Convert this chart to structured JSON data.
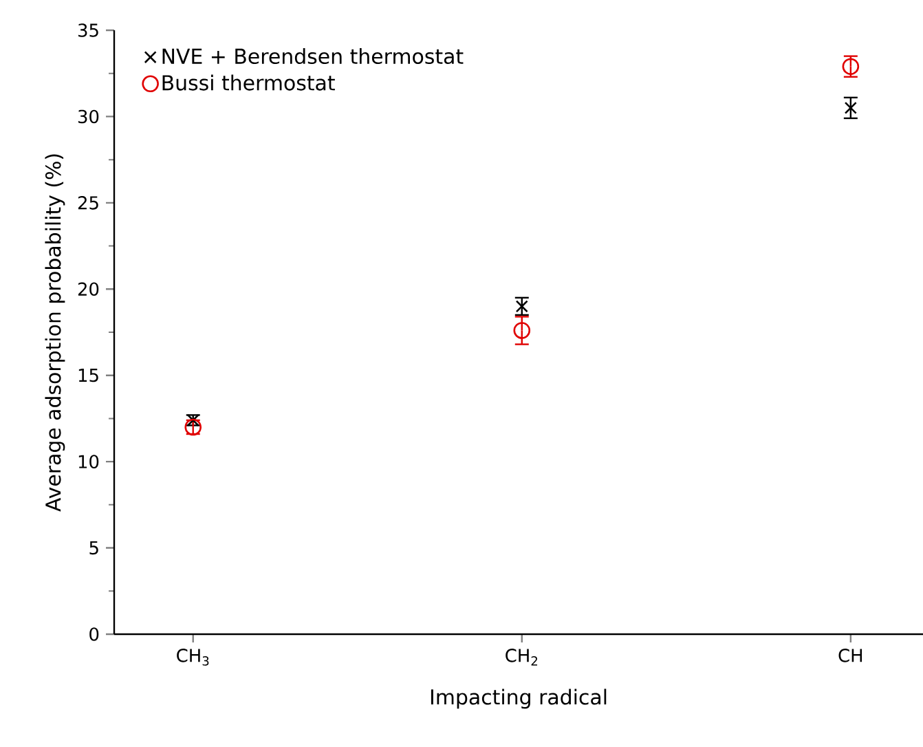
{
  "chart_data": {
    "type": "scatter",
    "xlabel": "Impacting radical",
    "ylabel": "Average adsorption probability (%)",
    "categories": [
      "CH$_{3}$",
      "CH$_{2}$",
      "CH"
    ],
    "series": [
      {
        "name": "NVE + Berendsen thermostat",
        "color": "#000000",
        "marker": "cross",
        "values": [
          12.4,
          19.0,
          30.5
        ],
        "errors": [
          0.3,
          0.5,
          0.6
        ]
      },
      {
        "name": "Bussi thermostat",
        "color": "#e00000",
        "marker": "circle",
        "values": [
          12.0,
          17.6,
          32.9
        ],
        "errors": [
          0.4,
          0.8,
          0.6
        ]
      }
    ],
    "ylim": [
      0,
      35
    ],
    "yticks": [
      0,
      5,
      10,
      15,
      20,
      25,
      30,
      35
    ],
    "legend": "top left",
    "grid": false
  }
}
